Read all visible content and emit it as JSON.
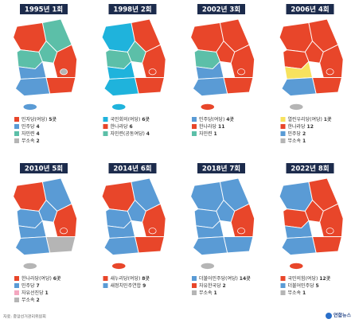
{
  "panels": [
    {
      "title": "1995년 1회",
      "legend": [
        {
          "party": "민자당(여당)",
          "seats": "5곳"
        },
        {
          "party": "민주당",
          "seats": "4"
        },
        {
          "party": "자민련",
          "seats": "4"
        },
        {
          "party": "무소속",
          "seats": "2"
        }
      ]
    },
    {
      "title": "1998년 2회",
      "legend": [
        {
          "party": "국민회의(여당)",
          "seats": "6곳"
        },
        {
          "party": "한나라당",
          "seats": "6"
        },
        {
          "party": "자민련(공동여당)",
          "seats": "4"
        }
      ]
    },
    {
      "title": "2002년 3회",
      "legend": [
        {
          "party": "민주당(여당)",
          "seats": "4곳"
        },
        {
          "party": "한나라당",
          "seats": "11"
        },
        {
          "party": "자민련",
          "seats": "1"
        }
      ]
    },
    {
      "title": "2006년 4회",
      "legend": [
        {
          "party": "열린우리당(여당)",
          "seats": "1곳"
        },
        {
          "party": "한나라당",
          "seats": "12"
        },
        {
          "party": "민주당",
          "seats": "2"
        },
        {
          "party": "무소속",
          "seats": "1"
        }
      ]
    },
    {
      "title": "2010년 5회",
      "legend": [
        {
          "party": "한나라당(여당)",
          "seats": "6곳"
        },
        {
          "party": "민주당",
          "seats": "7"
        },
        {
          "party": "자유선진당",
          "seats": "1"
        },
        {
          "party": "무소속",
          "seats": "2"
        }
      ]
    },
    {
      "title": "2014년 6회",
      "legend": [
        {
          "party": "새누리당(여당)",
          "seats": "8곳"
        },
        {
          "party": "새정치민주연합",
          "seats": "9"
        }
      ]
    },
    {
      "title": "2018년 7회",
      "legend": [
        {
          "party": "더불어민주당(여당)",
          "seats": "14곳"
        },
        {
          "party": "자유한국당",
          "seats": "2"
        },
        {
          "party": "무소속",
          "seats": "1"
        }
      ]
    },
    {
      "title": "2022년 8회",
      "legend": [
        {
          "party": "국민의힘(여당)",
          "seats": "12곳"
        },
        {
          "party": "더불어민주당",
          "seats": "5"
        },
        {
          "party": "무소속",
          "seats": "1"
        }
      ]
    }
  ],
  "footer": {
    "source": "자료: 중앙선거관리위원회",
    "logo": "연합뉴스"
  }
}
